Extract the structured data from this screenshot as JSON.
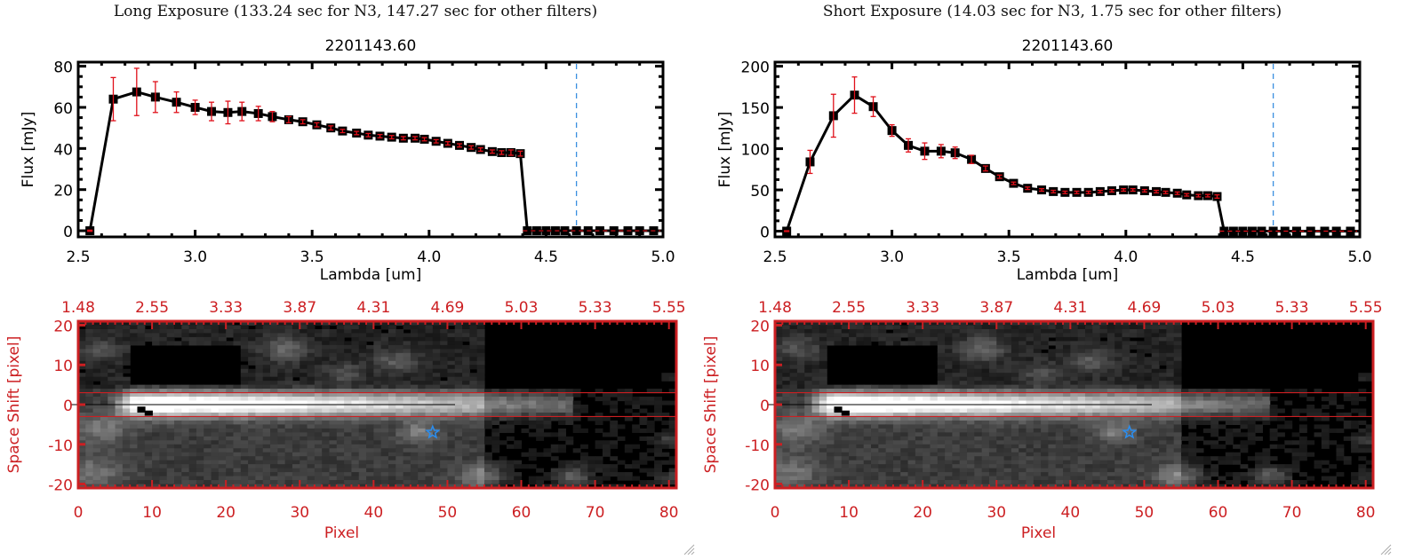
{
  "panels": [
    {
      "title": "Long Exposure (133.24 sec for N3, 147.27 sec for other filters)",
      "chart_data": {
        "type": "line",
        "title": "2201143.60",
        "xlabel": "Lambda [um]",
        "ylabel": "Flux [mJy]",
        "xlim": [
          2.5,
          5.0
        ],
        "ylim": [
          -3,
          82
        ],
        "xticks": [
          "2.5",
          "3.0",
          "3.5",
          "4.0",
          "4.5",
          "5.0"
        ],
        "yticks": [
          "0",
          "20",
          "40",
          "60",
          "80"
        ],
        "ytick_values": [
          0,
          20,
          40,
          60,
          80
        ],
        "xtick_values": [
          2.5,
          3.0,
          3.5,
          4.0,
          4.5,
          5.0
        ],
        "vline": 4.63,
        "x": [
          2.55,
          2.65,
          2.75,
          2.83,
          2.92,
          3.0,
          3.07,
          3.14,
          3.2,
          3.27,
          3.33,
          3.4,
          3.46,
          3.52,
          3.58,
          3.63,
          3.69,
          3.74,
          3.79,
          3.84,
          3.89,
          3.94,
          3.98,
          4.03,
          4.08,
          4.13,
          4.18,
          4.22,
          4.27,
          4.31,
          4.35,
          4.39,
          4.42,
          4.46,
          4.5,
          4.54,
          4.58,
          4.63,
          4.68,
          4.73,
          4.79,
          4.85,
          4.9,
          4.96
        ],
        "y": [
          0,
          64,
          67.5,
          65,
          62.5,
          60,
          58,
          57.5,
          58,
          57,
          55.5,
          54,
          53,
          51.5,
          50,
          48.5,
          47.5,
          46.5,
          46,
          45.5,
          45,
          45,
          44.5,
          43.5,
          42.5,
          41.5,
          40.5,
          39.5,
          38.5,
          38,
          38,
          37.5,
          0,
          0,
          0,
          0,
          0,
          0,
          0,
          0,
          0,
          0,
          0,
          0
        ],
        "err": [
          0.3,
          10.5,
          11.5,
          7.5,
          5,
          3.5,
          4.5,
          5.5,
          4.5,
          3.5,
          2.5,
          1.5,
          1,
          1,
          1,
          0.8,
          0.8,
          0.8,
          0.8,
          0.8,
          0.8,
          0.8,
          0.8,
          0.8,
          0.8,
          0.8,
          0.8,
          0.8,
          0.8,
          0.9,
          1.3,
          1.2,
          0,
          0,
          0,
          0,
          0,
          0,
          0,
          0,
          0,
          0,
          0,
          0
        ]
      },
      "image": {
        "top_ticks": [
          "1.48",
          "2.55",
          "3.33",
          "3.87",
          "4.31",
          "4.69",
          "5.03",
          "5.33",
          "5.55"
        ],
        "xticks": [
          "0",
          "10",
          "20",
          "30",
          "40",
          "50",
          "60",
          "70",
          "80"
        ],
        "yticks": [
          "20",
          "10",
          "0",
          "-10",
          "-20"
        ],
        "xlabel": "Pixel",
        "ylabel": "Space Shift [pixel]",
        "xlim": [
          0,
          81
        ],
        "ylim": [
          -21,
          21
        ],
        "aperture": [
          -3,
          3
        ],
        "star": [
          48,
          -7
        ],
        "trace_length": 67
      }
    },
    {
      "title": "Short Exposure (14.03 sec for N3, 1.75 sec for other filters)",
      "chart_data": {
        "type": "line",
        "title": "2201143.60",
        "xlabel": "Lambda [um]",
        "ylabel": "Flux [mJy]",
        "xlim": [
          2.5,
          5.0
        ],
        "ylim": [
          -7,
          205
        ],
        "xticks": [
          "2.5",
          "3.0",
          "3.5",
          "4.0",
          "4.5",
          "5.0"
        ],
        "yticks": [
          "0",
          "50",
          "100",
          "150",
          "200"
        ],
        "ytick_values": [
          0,
          50,
          100,
          150,
          200
        ],
        "xtick_values": [
          2.5,
          3.0,
          3.5,
          4.0,
          4.5,
          5.0
        ],
        "vline": 4.63,
        "x": [
          2.55,
          2.65,
          2.75,
          2.84,
          2.92,
          3.0,
          3.07,
          3.14,
          3.21,
          3.27,
          3.34,
          3.4,
          3.46,
          3.52,
          3.58,
          3.64,
          3.69,
          3.74,
          3.79,
          3.84,
          3.89,
          3.94,
          3.99,
          4.03,
          4.08,
          4.13,
          4.17,
          4.22,
          4.26,
          4.31,
          4.35,
          4.39,
          4.42,
          4.46,
          4.5,
          4.54,
          4.58,
          4.63,
          4.68,
          4.73,
          4.79,
          4.85,
          4.9,
          4.96
        ],
        "y": [
          0,
          84,
          140,
          165,
          151,
          122,
          104,
          97,
          97,
          95,
          87,
          76,
          66,
          58,
          52,
          50,
          48,
          47,
          47,
          47,
          48,
          49,
          50,
          50,
          49,
          48,
          47,
          46,
          44,
          43,
          43,
          42,
          0,
          0,
          0,
          0,
          0,
          0,
          0,
          0,
          0,
          0,
          0,
          0
        ],
        "err": [
          0.5,
          14,
          26,
          22,
          12,
          7,
          8,
          10,
          8,
          7,
          5,
          3,
          2,
          1.5,
          1.5,
          1.5,
          1.5,
          1.5,
          1.5,
          1.5,
          1.5,
          1.5,
          1.5,
          1.5,
          1.5,
          1.5,
          1.5,
          1.5,
          1.5,
          1.5,
          1.5,
          2,
          0,
          0,
          0,
          0,
          0,
          0,
          0,
          0,
          0,
          0,
          0,
          0
        ]
      },
      "image": {
        "top_ticks": [
          "1.48",
          "2.55",
          "3.33",
          "3.87",
          "4.31",
          "4.69",
          "5.03",
          "5.33",
          "5.55"
        ],
        "xticks": [
          "0",
          "10",
          "20",
          "30",
          "40",
          "50",
          "60",
          "70",
          "80"
        ],
        "yticks": [
          "20",
          "10",
          "0",
          "-10",
          "-20"
        ],
        "xlabel": "Pixel",
        "ylabel": "Space Shift [pixel]",
        "xlim": [
          0,
          81
        ],
        "ylim": [
          -21,
          21
        ],
        "aperture": [
          -3,
          3
        ],
        "star": [
          48,
          -7
        ],
        "trace_length": 67
      }
    }
  ],
  "colors": {
    "axis": "#000000",
    "errorbar": "#e0101a",
    "image_axis": "#cc1f22",
    "vline": "#3a8fe0",
    "star": "#2a8ef0",
    "zero_line": "#e0101a"
  }
}
